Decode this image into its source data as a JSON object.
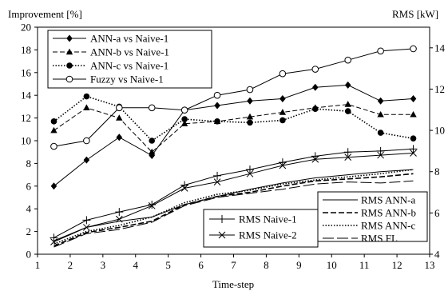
{
  "chart_data": {
    "type": "line",
    "title": "",
    "xlabel": "Time-step",
    "ylabel_left": "Improvement [%]",
    "ylabel_right": "RMS [kW]",
    "xlim": [
      1,
      13
    ],
    "ylim_left": [
      0,
      20
    ],
    "ylim_right": [
      4,
      15
    ],
    "x_ticks": [
      1,
      2,
      3,
      4,
      5,
      6,
      7,
      8,
      9,
      10,
      11,
      12,
      13
    ],
    "y_ticks_left": [
      0,
      2,
      4,
      6,
      8,
      10,
      12,
      14,
      16,
      18,
      20
    ],
    "y_ticks_right": [
      4,
      6,
      8,
      10,
      12,
      14
    ],
    "y_tick_labels_right": [
      "4",
      "6",
      "8",
      "10",
      "12",
      "14"
    ],
    "grid": false,
    "x": [
      1.5,
      2.5,
      3.5,
      4.5,
      5.5,
      6.5,
      7.5,
      8.5,
      9.5,
      10.5,
      11.5,
      12.5
    ],
    "series": [
      {
        "name": "ANN-a vs Naive-1",
        "axis": "left",
        "style": "solid",
        "marker": "diamond",
        "values": [
          6.0,
          8.3,
          10.3,
          8.7,
          12.7,
          13.1,
          13.5,
          13.7,
          14.7,
          14.9,
          13.5,
          13.7
        ]
      },
      {
        "name": "ANN-b vs Naive-1",
        "axis": "left",
        "style": "dashed",
        "marker": "triangle",
        "values": [
          10.9,
          12.9,
          12.0,
          9.0,
          11.5,
          11.7,
          12.1,
          12.5,
          12.9,
          13.2,
          12.3,
          12.3
        ]
      },
      {
        "name": "ANN-c vs Naive-1",
        "axis": "left",
        "style": "dotted",
        "marker": "circle-filled",
        "values": [
          11.7,
          13.9,
          13.0,
          10.0,
          11.9,
          11.7,
          11.6,
          11.8,
          12.8,
          12.6,
          10.7,
          10.2
        ]
      },
      {
        "name": "Fuzzy  vs Naive-1",
        "axis": "left",
        "style": "solid",
        "marker": "circle-open",
        "values": [
          9.5,
          10.0,
          12.9,
          12.9,
          12.7,
          14.0,
          14.5,
          15.9,
          16.3,
          17.1,
          17.9,
          18.1
        ]
      },
      {
        "name": "RMS ANN-a",
        "axis": "right",
        "style": "solid",
        "marker": "none",
        "values": [
          4.65,
          5.3,
          5.6,
          5.8,
          6.4,
          6.8,
          7.15,
          7.45,
          7.7,
          7.85,
          8.0,
          8.1
        ]
      },
      {
        "name": "RMS ANN-b",
        "axis": "right",
        "style": "dashed-bold",
        "marker": "none",
        "values": [
          4.4,
          5.05,
          5.3,
          5.6,
          6.4,
          6.8,
          7.0,
          7.3,
          7.55,
          7.65,
          7.75,
          7.9
        ]
      },
      {
        "name": "RMS ANN-c",
        "axis": "right",
        "style": "dotted",
        "marker": "none",
        "values": [
          4.5,
          5.1,
          5.4,
          5.8,
          6.5,
          6.9,
          7.1,
          7.4,
          7.6,
          7.75,
          7.9,
          8.1
        ]
      },
      {
        "name": "RMS FL",
        "axis": "right",
        "style": "longdash",
        "marker": "none",
        "values": [
          4.35,
          5.0,
          5.2,
          5.55,
          6.35,
          6.75,
          6.95,
          7.15,
          7.4,
          7.5,
          7.45,
          7.55
        ]
      },
      {
        "name": "RMS Naive-1",
        "axis": "right",
        "style": "solid",
        "marker": "plus",
        "values": [
          4.8,
          5.65,
          6.05,
          6.4,
          7.35,
          7.8,
          8.1,
          8.45,
          8.75,
          8.95,
          9.0,
          9.1
        ]
      },
      {
        "name": "RMS Naive-2",
        "axis": "right",
        "style": "solid",
        "marker": "x",
        "values": [
          4.6,
          5.3,
          5.7,
          6.35,
          7.2,
          7.5,
          7.9,
          8.3,
          8.6,
          8.7,
          8.8,
          8.9
        ]
      }
    ],
    "legends": [
      {
        "placement": "top-left",
        "items": [
          "ANN-a vs Naive-1",
          "ANN-b vs Naive-1",
          "ANN-c vs Naive-1",
          "Fuzzy  vs Naive-1"
        ]
      },
      {
        "placement": "bottom-center",
        "items": [
          "RMS Naive-1",
          "RMS Naive-2"
        ]
      },
      {
        "placement": "bottom-right",
        "items": [
          "RMS ANN-a",
          "RMS ANN-b",
          "RMS ANN-c",
          "RMS FL"
        ]
      }
    ]
  }
}
